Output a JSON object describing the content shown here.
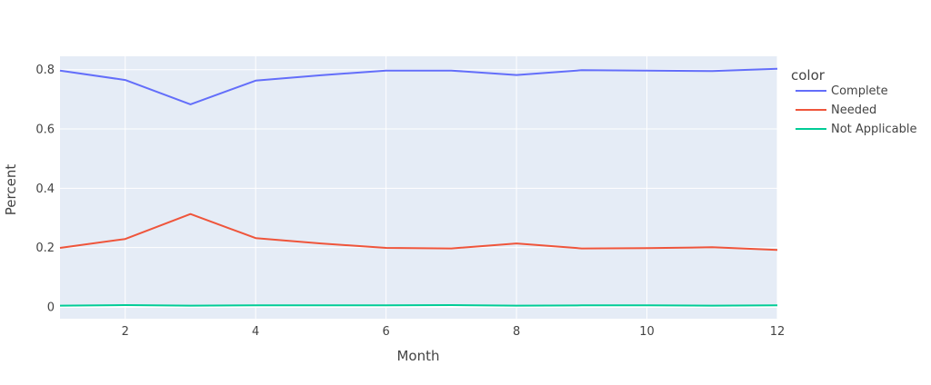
{
  "chart_data": {
    "type": "line",
    "title": "",
    "xlabel": "Month",
    "ylabel": "Percent",
    "xlim": [
      1,
      12
    ],
    "ylim": [
      -0.04,
      0.845
    ],
    "x_ticks": [
      2,
      4,
      6,
      8,
      10,
      12
    ],
    "y_ticks": [
      0,
      0.2,
      0.4,
      0.6,
      0.8
    ],
    "grid": true,
    "legend": {
      "title": "color",
      "position": "right"
    },
    "x": [
      1,
      2,
      3,
      4,
      5,
      6,
      7,
      8,
      9,
      10,
      11,
      12
    ],
    "series": [
      {
        "name": "Complete",
        "color": "#636efa",
        "values": [
          0.797,
          0.765,
          0.683,
          0.763,
          0.781,
          0.797,
          0.797,
          0.782,
          0.798,
          0.797,
          0.795,
          0.803
        ]
      },
      {
        "name": "Needed",
        "color": "#ef553b",
        "values": [
          0.199,
          0.229,
          0.313,
          0.232,
          0.214,
          0.199,
          0.197,
          0.214,
          0.197,
          0.198,
          0.201,
          0.192
        ]
      },
      {
        "name": "Not Applicable",
        "color": "#00cc96",
        "values": [
          0.004,
          0.006,
          0.004,
          0.005,
          0.005,
          0.005,
          0.006,
          0.004,
          0.005,
          0.005,
          0.004,
          0.005
        ]
      }
    ]
  }
}
